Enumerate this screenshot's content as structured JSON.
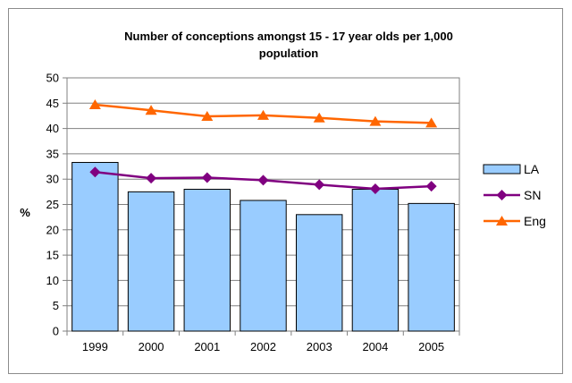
{
  "chart_data": {
    "type": "bar",
    "title_lines": [
      "Number of conceptions amongst 15 - 17 year olds per 1,000",
      "population"
    ],
    "ylabel": "%",
    "xlabel": "",
    "categories": [
      "1999",
      "2000",
      "2001",
      "2002",
      "2003",
      "2004",
      "2005"
    ],
    "ylim": [
      0,
      50
    ],
    "yticks": [
      0,
      5,
      10,
      15,
      20,
      25,
      30,
      35,
      40,
      45,
      50
    ],
    "grid": true,
    "legend_position": "right",
    "series": [
      {
        "name": "LA",
        "kind": "bar",
        "color": "#99ccff",
        "stroke": "#000000",
        "values": [
          33.3,
          27.5,
          28.0,
          25.8,
          23.0,
          28.0,
          25.2
        ]
      },
      {
        "name": "SN",
        "kind": "line",
        "marker": "diamond",
        "color": "#800080",
        "values": [
          31.4,
          30.2,
          30.3,
          29.8,
          28.9,
          28.1,
          28.6
        ]
      },
      {
        "name": "Eng",
        "kind": "line",
        "marker": "triangle",
        "color": "#ff6600",
        "values": [
          44.7,
          43.6,
          42.4,
          42.6,
          42.1,
          41.4,
          41.1
        ]
      }
    ]
  }
}
